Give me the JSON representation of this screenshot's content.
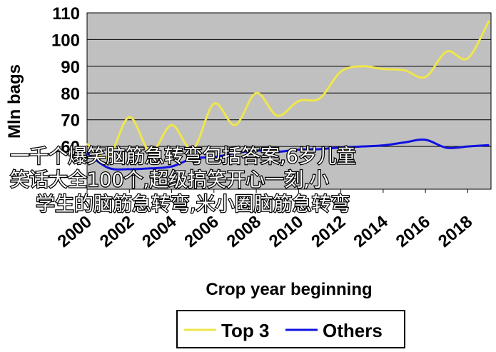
{
  "chart_data": {
    "type": "line",
    "title": "",
    "xlabel": "Crop year beginning",
    "ylabel": "Mln bags",
    "x": [
      2000,
      2001,
      2002,
      2003,
      2004,
      2005,
      2006,
      2007,
      2008,
      2009,
      2010,
      2011,
      2012,
      2013,
      2014,
      2015,
      2016,
      2017,
      2018,
      2019
    ],
    "xticks": [
      "2000",
      "2002",
      "2004",
      "2006",
      "2008",
      "2010",
      "2012",
      "2014",
      "2016",
      "2018"
    ],
    "yticks": [
      "60",
      "70",
      "80",
      "90",
      "100",
      "110"
    ],
    "xlim": [
      2000,
      2019.1
    ],
    "ylim": [
      44,
      110
    ],
    "grid": true,
    "legend": "bottom",
    "background": "#c0c0c0",
    "series": [
      {
        "name": "Top 3",
        "color": "#f0e64a",
        "values": [
          61,
          56,
          71,
          58,
          68,
          59,
          76,
          68,
          80,
          71.5,
          77,
          78,
          88,
          90,
          89,
          88.5,
          86,
          95.5,
          93,
          107
        ]
      },
      {
        "name": "Others",
        "color": "#1010e0",
        "values": [
          57.5,
          52,
          51.5,
          51.8,
          52.5,
          55.5,
          56,
          57.5,
          58.5,
          58,
          58.8,
          59,
          59.6,
          60,
          60.4,
          61.5,
          62.5,
          59.5,
          60,
          60.5
        ]
      }
    ]
  },
  "overlay": {
    "lines": [
      "一千个爆笑脑筋急转弯包括答案,6岁儿童",
      "笑话大全100个,超级搞笑开心一刻,小",
      "学生的脑筋急转弯,米小圈脑筋急转弯"
    ]
  }
}
